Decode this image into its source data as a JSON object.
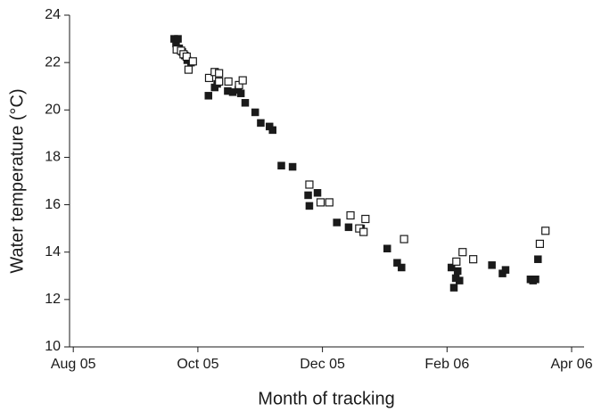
{
  "chart_data": {
    "type": "scatter",
    "xlabel": "Month of tracking",
    "ylabel": "Water temperature (°C)",
    "xlim": [
      7.94,
      16.2
    ],
    "xticks": [
      {
        "value": 8,
        "label": "Aug 05"
      },
      {
        "value": 10,
        "label": "Oct 05"
      },
      {
        "value": 12,
        "label": "Dec 05"
      },
      {
        "value": 14,
        "label": "Feb 06"
      },
      {
        "value": 16,
        "label": "Apr 06"
      }
    ],
    "ylim": [
      10,
      24
    ],
    "yticks": [
      10,
      12,
      14,
      16,
      18,
      20,
      22,
      24
    ],
    "grid": false,
    "series": [
      {
        "color": "#1a1a1a",
        "marker": "filled-square",
        "x": [
          9.62,
          9.65,
          9.68,
          9.7,
          9.75,
          9.79,
          9.83,
          9.89,
          10.17,
          10.27,
          10.31,
          10.48,
          10.56,
          10.65,
          10.69,
          10.76,
          10.92,
          11.01,
          11.15,
          11.2,
          11.34,
          11.52,
          11.77,
          11.79,
          11.92,
          12.23,
          12.42,
          12.62,
          13.04,
          13.2,
          13.27,
          14.07,
          14.11,
          14.14,
          14.17,
          14.2,
          14.72,
          14.89,
          14.94,
          15.34,
          15.38,
          15.42,
          15.46
        ],
        "values": [
          23.0,
          22.8,
          23.0,
          22.6,
          22.45,
          22.3,
          22.1,
          22.0,
          20.6,
          20.95,
          21.1,
          20.8,
          20.75,
          20.85,
          20.7,
          20.3,
          19.9,
          19.45,
          19.3,
          19.15,
          17.65,
          17.6,
          16.4,
          15.95,
          16.5,
          15.25,
          15.05,
          15.0,
          14.15,
          13.55,
          13.35,
          13.35,
          12.5,
          12.9,
          13.2,
          12.8,
          13.45,
          13.1,
          13.25,
          12.85,
          12.8,
          12.85,
          13.7
        ]
      },
      {
        "color": "#1a1a1a",
        "marker": "open-square",
        "x": [
          9.66,
          9.73,
          9.77,
          9.82,
          9.85,
          9.92,
          10.18,
          10.27,
          10.34,
          10.34,
          10.49,
          10.66,
          10.72,
          11.79,
          11.97,
          12.11,
          12.45,
          12.59,
          12.66,
          12.69,
          13.31,
          14.15,
          14.25,
          14.42,
          15.49,
          15.58
        ],
        "values": [
          22.55,
          22.5,
          22.35,
          22.25,
          21.7,
          22.05,
          21.35,
          21.6,
          21.55,
          21.2,
          21.2,
          21.05,
          21.25,
          16.85,
          16.1,
          16.1,
          15.55,
          15.0,
          14.85,
          15.4,
          14.55,
          13.6,
          14.0,
          13.7,
          14.35,
          14.9
        ]
      }
    ]
  }
}
